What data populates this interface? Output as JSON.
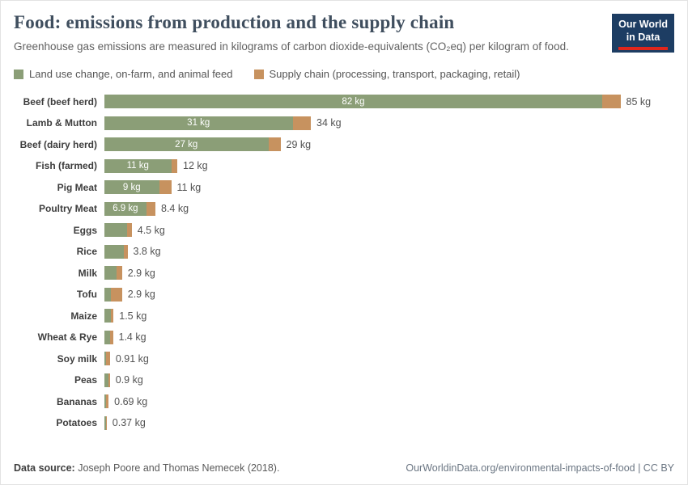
{
  "page": {
    "title": "Food: emissions from production and the supply chain",
    "subtitle": "Greenhouse gas emissions are measured in kilograms of carbon dioxide-equivalents (CO₂eq) per kilogram of food.",
    "logo": {
      "line1": "Our World",
      "line2": "in Data"
    }
  },
  "legend": [
    {
      "label": "Land use change, on-farm, and animal feed",
      "color": "#8b9e77"
    },
    {
      "label": "Supply chain (processing, transport, packaging, retail)",
      "color": "#c7925f"
    }
  ],
  "footer": {
    "source_prefix": "Data source:",
    "source_text": " Joseph Poore and Thomas Nemecek (2018).",
    "right_text": "OurWorldinData.org/environmental-impacts-of-food | CC BY"
  },
  "chart_data": {
    "type": "bar",
    "orientation": "horizontal",
    "stacked": true,
    "unit": "kg CO₂eq per kg of food",
    "xlim": [
      0,
      85
    ],
    "grid": false,
    "legend_position": "top",
    "series_names": [
      "Land use change, on-farm, and animal feed",
      "Supply chain (processing, transport, packaging, retail)"
    ],
    "rows": [
      {
        "category": "Beef (beef herd)",
        "production": 82,
        "supply": 3,
        "total": 85,
        "inside_label": "82 kg",
        "total_label": "85 kg"
      },
      {
        "category": "Lamb & Mutton",
        "production": 31,
        "supply": 3,
        "total": 34,
        "inside_label": "31 kg",
        "total_label": "34 kg"
      },
      {
        "category": "Beef (dairy herd)",
        "production": 27,
        "supply": 2,
        "total": 29,
        "inside_label": "27 kg",
        "total_label": "29 kg"
      },
      {
        "category": "Fish (farmed)",
        "production": 11,
        "supply": 1,
        "total": 12,
        "inside_label": "11 kg",
        "total_label": "12 kg"
      },
      {
        "category": "Pig Meat",
        "production": 9,
        "supply": 2,
        "total": 11,
        "inside_label": "9 kg",
        "total_label": "11 kg"
      },
      {
        "category": "Poultry Meat",
        "production": 6.9,
        "supply": 1.5,
        "total": 8.4,
        "inside_label": "6.9 kg",
        "total_label": "8.4 kg"
      },
      {
        "category": "Eggs",
        "production": 3.7,
        "supply": 0.8,
        "total": 4.5,
        "inside_label": null,
        "total_label": "4.5 kg"
      },
      {
        "category": "Rice",
        "production": 3.2,
        "supply": 0.6,
        "total": 3.8,
        "inside_label": null,
        "total_label": "3.8 kg"
      },
      {
        "category": "Milk",
        "production": 2.0,
        "supply": 0.9,
        "total": 2.9,
        "inside_label": null,
        "total_label": "2.9 kg"
      },
      {
        "category": "Tofu",
        "production": 1.0,
        "supply": 1.9,
        "total": 2.9,
        "inside_label": null,
        "total_label": "2.9 kg"
      },
      {
        "category": "Maize",
        "production": 1.0,
        "supply": 0.5,
        "total": 1.5,
        "inside_label": null,
        "total_label": "1.5 kg"
      },
      {
        "category": "Wheat & Rye",
        "production": 0.9,
        "supply": 0.5,
        "total": 1.4,
        "inside_label": null,
        "total_label": "1.4 kg"
      },
      {
        "category": "Soy milk",
        "production": 0.3,
        "supply": 0.61,
        "total": 0.91,
        "inside_label": null,
        "total_label": "0.91 kg"
      },
      {
        "category": "Peas",
        "production": 0.7,
        "supply": 0.2,
        "total": 0.9,
        "inside_label": null,
        "total_label": "0.9 kg"
      },
      {
        "category": "Bananas",
        "production": 0.3,
        "supply": 0.39,
        "total": 0.69,
        "inside_label": null,
        "total_label": "0.69 kg"
      },
      {
        "category": "Potatoes",
        "production": 0.2,
        "supply": 0.17,
        "total": 0.37,
        "inside_label": null,
        "total_label": "0.37 kg"
      }
    ]
  }
}
